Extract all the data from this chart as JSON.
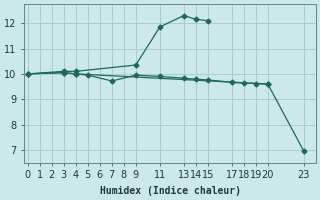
{
  "xlabel": "Humidex (Indice chaleur)",
  "background_color": "#cce8e8",
  "grid_color": "#aacccc",
  "line_color": "#1a6b5a",
  "line1_x": [
    0,
    3,
    4,
    9,
    11,
    13,
    14,
    15
  ],
  "line1_y": [
    10.0,
    10.1,
    10.1,
    10.35,
    11.85,
    12.3,
    12.15,
    12.1
  ],
  "line2_x": [
    0,
    3,
    4,
    5,
    7,
    9,
    11,
    13,
    14,
    15,
    17,
    18,
    19,
    20
  ],
  "line2_y": [
    10.0,
    10.05,
    10.0,
    9.95,
    9.72,
    9.95,
    9.9,
    9.83,
    9.79,
    9.76,
    9.67,
    9.63,
    9.62,
    9.6
  ],
  "line3_x": [
    0,
    3,
    4,
    20,
    23
  ],
  "line3_y": [
    10.0,
    10.05,
    10.0,
    9.6,
    6.95
  ],
  "xlim": [
    -0.3,
    24.0
  ],
  "ylim": [
    6.5,
    12.75
  ],
  "yticks": [
    7,
    8,
    9,
    10,
    11,
    12
  ],
  "xticks": [
    0,
    1,
    2,
    3,
    4,
    5,
    6,
    7,
    8,
    9,
    11,
    13,
    14,
    15,
    17,
    18,
    19,
    20,
    23
  ],
  "xtick_labels": [
    "0",
    "1",
    "2",
    "3",
    "4",
    "5",
    "6",
    "7",
    "8",
    "9",
    "11",
    "13",
    "14",
    "15",
    "17",
    "18",
    "19",
    "20",
    "23"
  ],
  "marker": "D",
  "markersize": 2.5,
  "linewidth": 0.9
}
